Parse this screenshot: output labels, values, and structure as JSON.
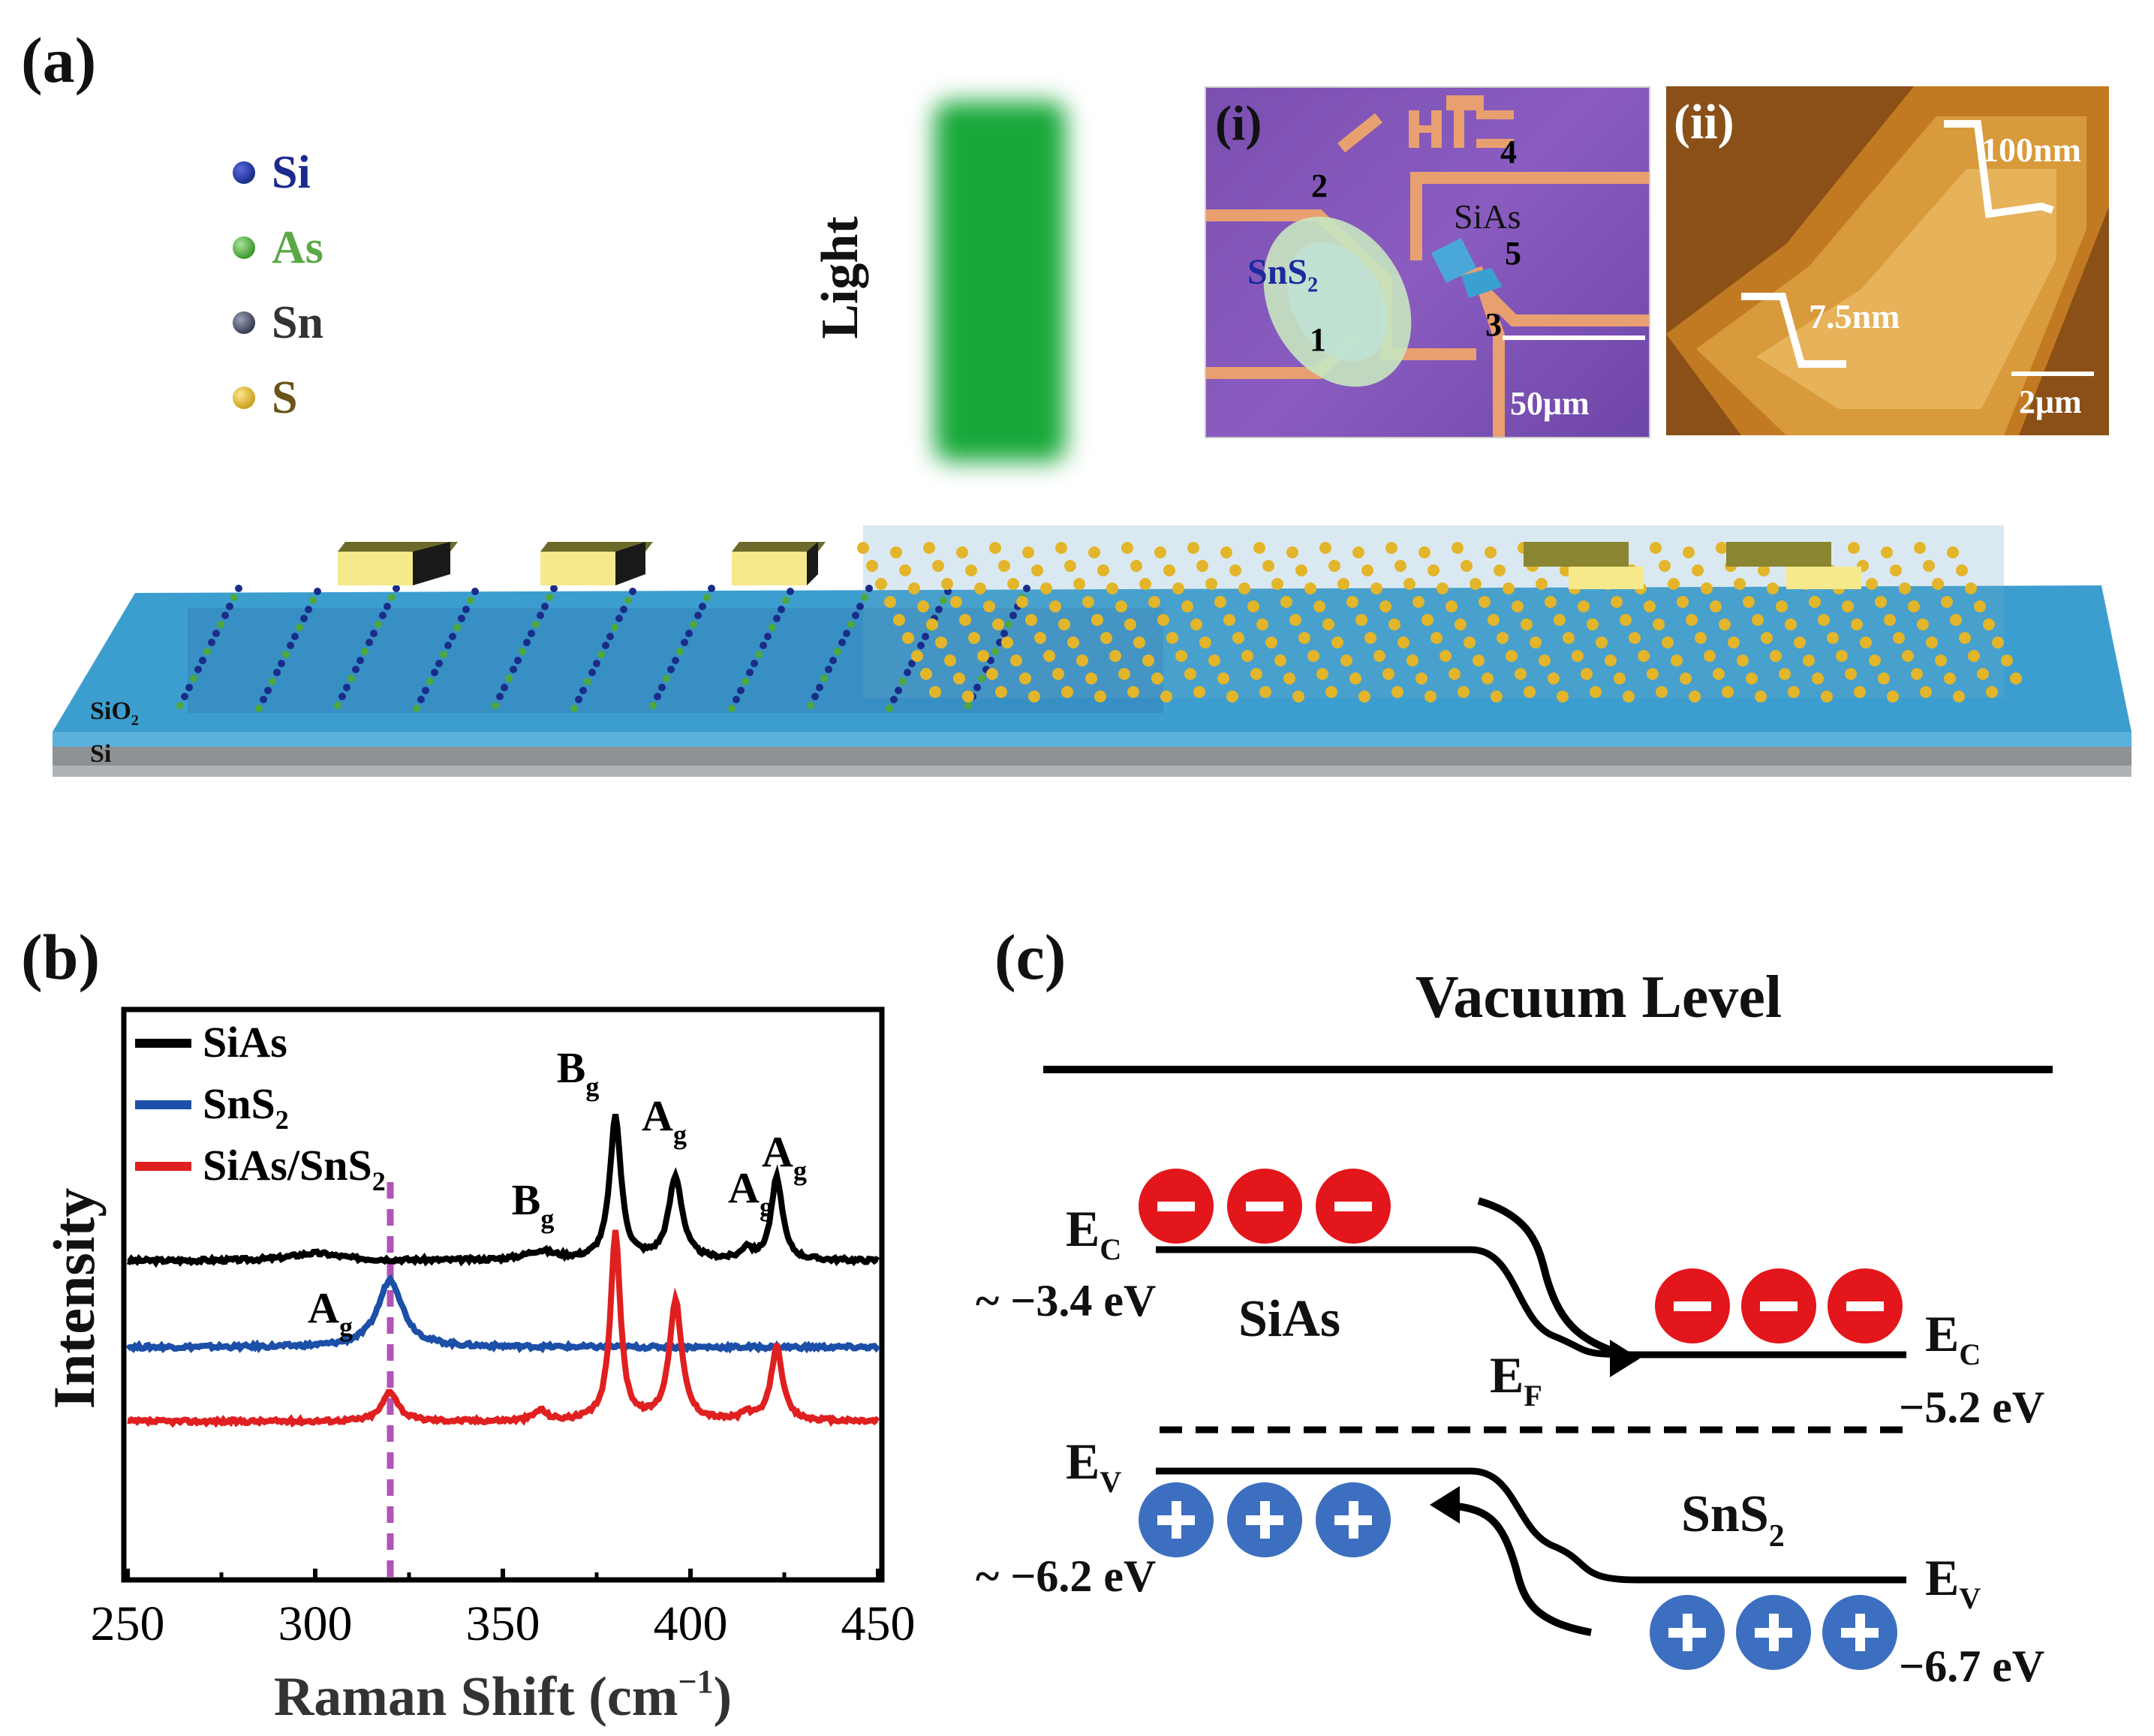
{
  "panel_a": {
    "label": "(a)",
    "legend": [
      {
        "symbol": "Si",
        "color": "#1b2a8c",
        "dot": "#1a2c8a"
      },
      {
        "symbol": "As",
        "color": "#5aa845",
        "dot": "#4ea83c"
      },
      {
        "symbol": "Sn",
        "color": "#333333",
        "dot": "#55586b"
      },
      {
        "symbol": "S",
        "color": "#6b5418",
        "dot": "#c9a21e"
      }
    ],
    "light_label": "Light",
    "substrate_layers": {
      "top": "SiO",
      "top_sub": "2",
      "bottom": "Si"
    },
    "inset_i": {
      "label": "(i)",
      "material_1": "SnS",
      "material_1_sub": "2",
      "material_2": "SiAs",
      "electrodes": [
        "1",
        "2",
        "3",
        "4",
        "5"
      ],
      "scalebar": "50μm"
    },
    "inset_ii": {
      "label": "(ii)",
      "height_1": "100nm",
      "height_2": "7.5nm",
      "scalebar": "2μm"
    }
  },
  "panel_b": {
    "label": "(b)",
    "chart_data": {
      "type": "line",
      "xlabel": "Raman Shift (cm",
      "xlabel_sup": "−1",
      "xlabel_close": ")",
      "ylabel": "Intensity",
      "xlim": [
        250,
        450
      ],
      "x_ticks": [
        250,
        300,
        350,
        400,
        450
      ],
      "series": [
        {
          "name": "SiAs",
          "color": "#000000",
          "offset": 0.0,
          "baseline": 0.05,
          "peaks": [
            [
              300,
              0.05,
              8
            ],
            [
              360,
              0.06,
              5
            ],
            [
              380,
              0.95,
              1.8
            ],
            [
              396,
              0.55,
              2.2
            ],
            [
              415,
              0.08,
              1.5
            ],
            [
              423,
              0.55,
              1.8
            ]
          ]
        },
        {
          "name": "SnS",
          "name_sub": "2",
          "color": "#1b4fa8",
          "offset": 1.15,
          "baseline": 0.0,
          "peaks": [
            [
              320,
              0.45,
              4
            ]
          ]
        },
        {
          "name": "SiAs/SnS",
          "name_sub": "2",
          "color": "#e02020",
          "offset": 2.05,
          "baseline": 0.03,
          "peaks": [
            [
              320,
              0.2,
              2.5
            ],
            [
              360,
              0.07,
              2
            ],
            [
              380,
              1.25,
              1.6
            ],
            [
              396,
              0.8,
              2
            ],
            [
              415,
              0.05,
              1.5
            ],
            [
              423,
              0.5,
              1.8
            ]
          ]
        }
      ],
      "dashed_line_x": 320,
      "annotations": [
        {
          "text": "B",
          "sub": "g",
          "x": 358,
          "y": 0.45
        },
        {
          "text": "B",
          "sub": "g",
          "x": 370,
          "y": 1.55
        },
        {
          "text": "A",
          "sub": "g",
          "x": 393,
          "y": 1.15
        },
        {
          "text": "A",
          "sub": "g",
          "x": 416,
          "y": 0.55
        },
        {
          "text": "A",
          "sub": "g",
          "x": 425,
          "y": 0.85
        },
        {
          "text": "A",
          "sub": "g",
          "x": 304,
          "y": -0.45
        }
      ]
    }
  },
  "panel_c": {
    "label": "(c)",
    "vacuum_level": "Vacuum Level",
    "left_material": "SiAs",
    "right_material": "SnS",
    "right_material_sub": "2",
    "ec_left": "E",
    "ec_left_sub": "C",
    "ev_left": "E",
    "ev_left_sub": "V",
    "ec_right": "E",
    "ec_right_sub": "C",
    "ev_right": "E",
    "ev_right_sub": "V",
    "ef": "E",
    "ef_sub": "F",
    "energy_ec_left": "~ −3.4 eV",
    "energy_ev_left": "~ −6.2 eV",
    "energy_ef": "−5.2 eV",
    "energy_ev_right": "−6.7 eV",
    "electron_symbol": "−",
    "hole_symbol": "+",
    "electron_color": "#e3161b",
    "hole_color": "#3d6fc1"
  }
}
